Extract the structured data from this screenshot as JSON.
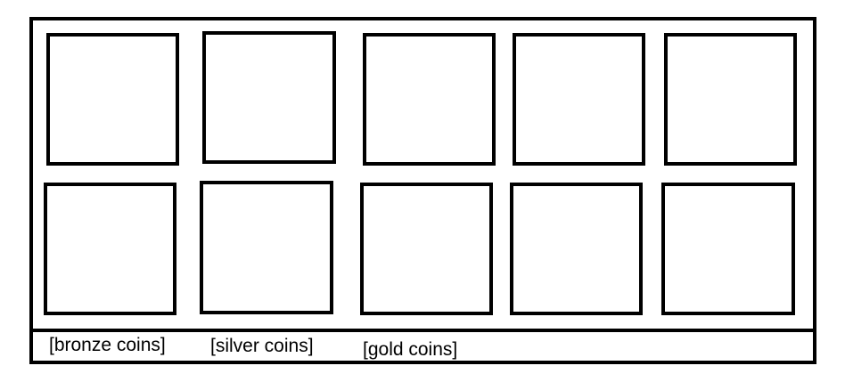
{
  "labels": {
    "bronze": "[bronze coins]",
    "silver": "[silver coins]",
    "gold": "[gold coins]"
  },
  "colors": {
    "stroke": "#000000",
    "background": "#ffffff"
  }
}
